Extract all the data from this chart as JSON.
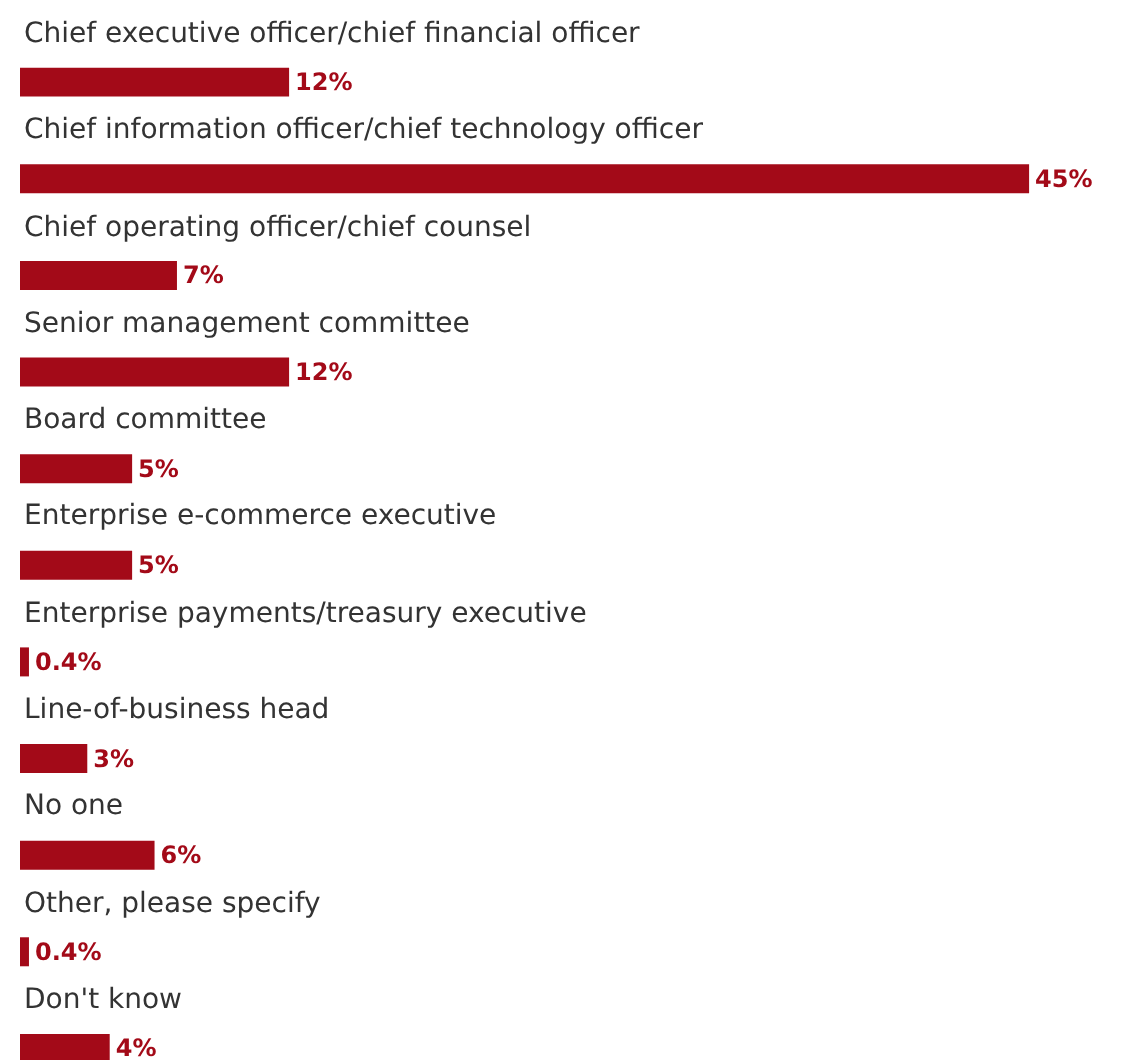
{
  "chart_data": {
    "type": "bar",
    "orientation": "horizontal",
    "categories": [
      "Chief executive officer/chief financial officer",
      "Chief information officer/chief technology officer",
      "Chief operating officer/chief counsel",
      "Senior management committee",
      "Board committee",
      "Enterprise e-commerce executive",
      "Enterprise payments/treasury executive",
      "Line-of-business head",
      "No one",
      "Other, please specify",
      "Don't know"
    ],
    "values": [
      12,
      45,
      7,
      12,
      5,
      5,
      0.4,
      3,
      6,
      0.4,
      4
    ],
    "value_labels": [
      "12%",
      "45%",
      "7%",
      "12%",
      "5%",
      "5%",
      "0.4%",
      "3%",
      "6%",
      "0.4%",
      "4%"
    ],
    "color": "#a30a18"
  }
}
